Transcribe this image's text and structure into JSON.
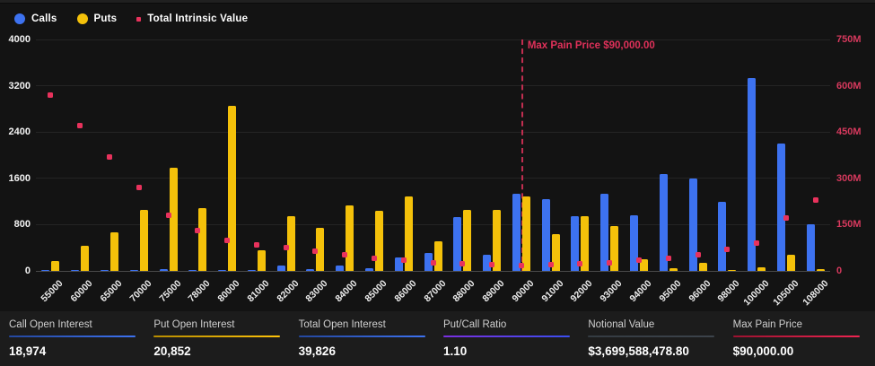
{
  "legend": {
    "items": [
      {
        "label": "Calls",
        "color": "#3d72f0",
        "shape": "circle"
      },
      {
        "label": "Puts",
        "color": "#f4c10a",
        "shape": "circle"
      },
      {
        "label": "Total Intrinsic Value",
        "color": "#e8325c",
        "shape": "square"
      }
    ]
  },
  "chart_data": {
    "type": "bar",
    "categories": [
      "55000",
      "60000",
      "65000",
      "70000",
      "75000",
      "78000",
      "80000",
      "81000",
      "82000",
      "83000",
      "84000",
      "85000",
      "86000",
      "87000",
      "88000",
      "89000",
      "90000",
      "91000",
      "92000",
      "93000",
      "94000",
      "95000",
      "96000",
      "98000",
      "100000",
      "105000",
      "108000"
    ],
    "series": [
      {
        "name": "Calls",
        "axis": "left",
        "color": "#3d72f0",
        "values": [
          10,
          10,
          10,
          15,
          30,
          15,
          20,
          15,
          100,
          25,
          90,
          50,
          240,
          310,
          925,
          280,
          1330,
          1240,
          950,
          1330,
          960,
          1670,
          1590,
          1200,
          3340,
          2200,
          810
        ]
      },
      {
        "name": "Puts",
        "axis": "left",
        "color": "#f4c10a",
        "values": [
          165,
          440,
          660,
          1050,
          1780,
          1080,
          2850,
          350,
          950,
          750,
          1130,
          1040,
          1290,
          510,
          1050,
          1060,
          1290,
          640,
          940,
          770,
          205,
          45,
          140,
          15,
          60,
          285,
          35
        ]
      },
      {
        "name": "Total Intrinsic Value",
        "axis": "right",
        "color": "#e8325c",
        "type": "scatter",
        "values": [
          570,
          470,
          370,
          270,
          180,
          130,
          100,
          85,
          76,
          63,
          52,
          42,
          34,
          27,
          24,
          20,
          18,
          20,
          22,
          26,
          34,
          42,
          51,
          71,
          90,
          173,
          229
        ]
      }
    ],
    "left_axis": {
      "min": 0,
      "max": 4000,
      "ticks": [
        "4000",
        "3200",
        "2400",
        "1600",
        "800",
        "0"
      ]
    },
    "right_axis": {
      "min": 0,
      "max": 750,
      "ticks": [
        "750M",
        "600M",
        "450M",
        "300M",
        "150M",
        "0"
      ],
      "unit": "M"
    },
    "annotation": {
      "label": "Max Pain Price $90,000.00",
      "category": "90000",
      "color": "#e0315a"
    },
    "grid": true,
    "legend_position": "top-left"
  },
  "stats": {
    "items": [
      {
        "label": "Call Open Interest",
        "value": "18,974",
        "accent": "linear-gradient(90deg,#24479e,#3d72f0)"
      },
      {
        "label": "Put Open Interest",
        "value": "20,852",
        "accent": "linear-gradient(90deg,#b78c00,#fec30a)"
      },
      {
        "label": "Total Open Interest",
        "value": "39,826",
        "accent": "linear-gradient(90deg,#24479e,#3d72f0)"
      },
      {
        "label": "Put/Call Ratio",
        "value": "1.10",
        "accent": "linear-gradient(90deg,#7a2fe0,#3b4ef0)"
      },
      {
        "label": "Notional Value",
        "value": "$3,699,588,478.80",
        "accent": "linear-gradient(90deg,#343b42,#3c434b)"
      },
      {
        "label": "Max Pain Price",
        "value": "$90,000.00",
        "accent": "linear-gradient(90deg,#9c1230,#ef2451)"
      }
    ]
  }
}
